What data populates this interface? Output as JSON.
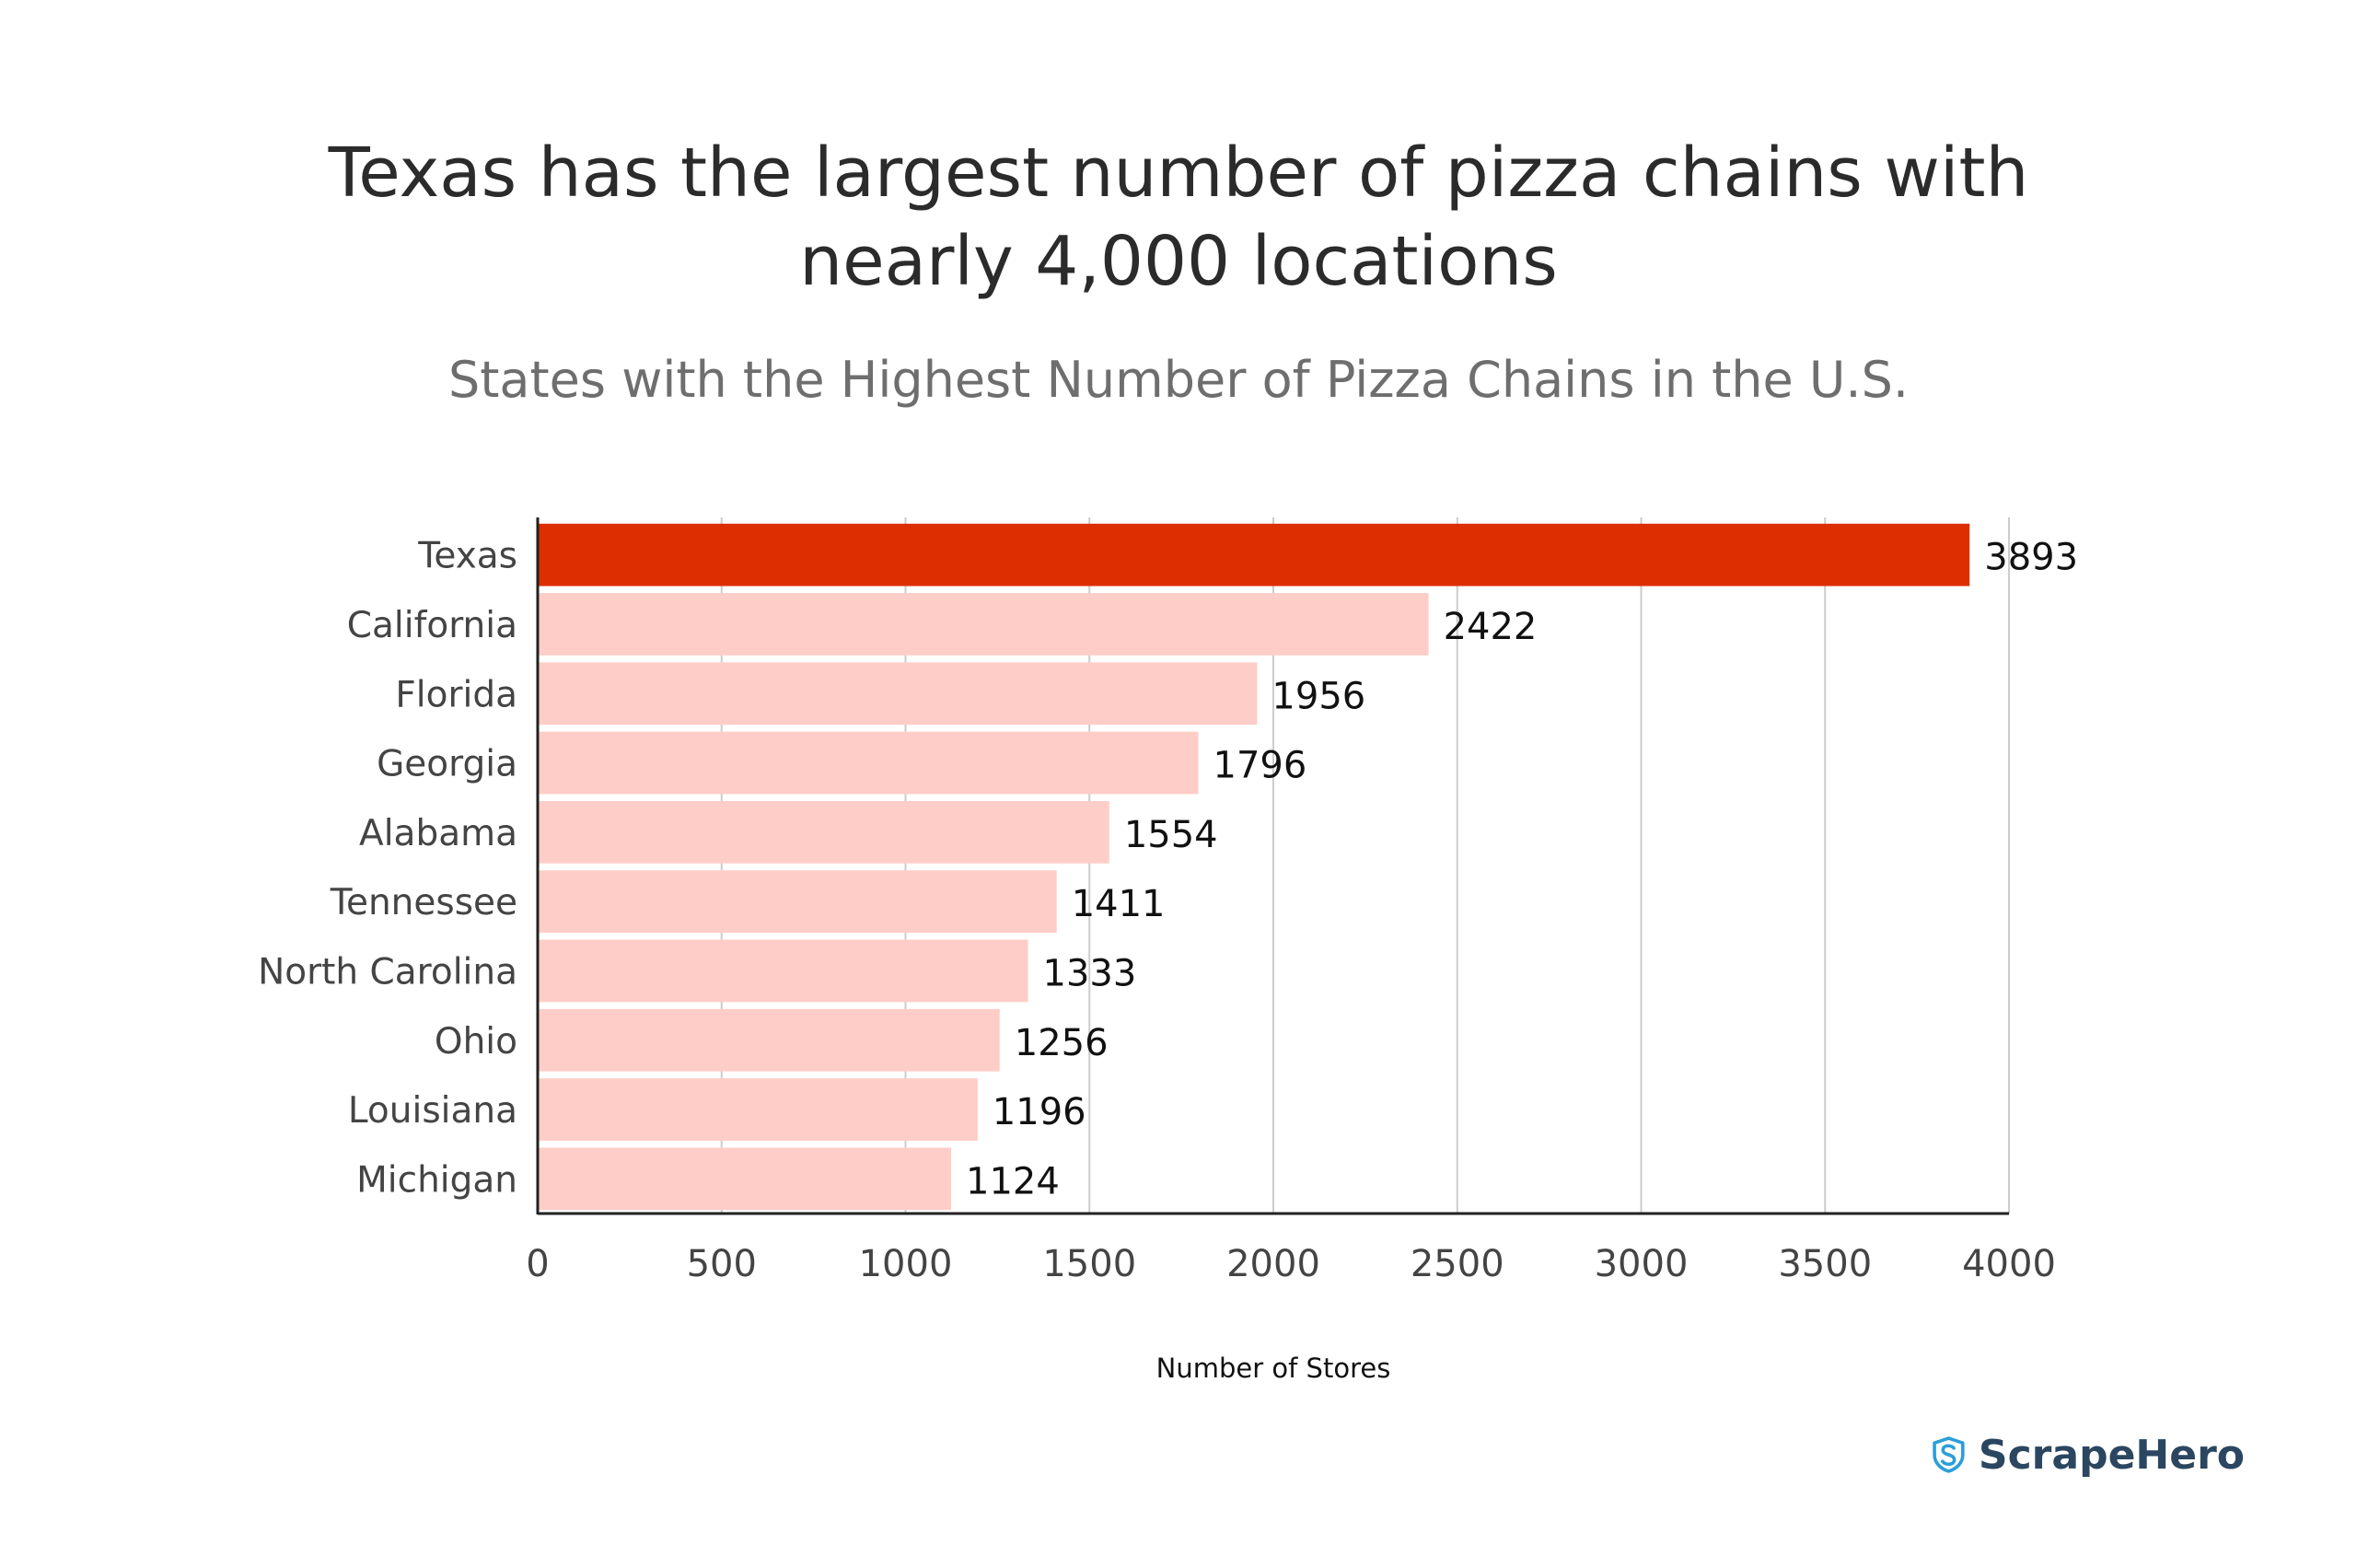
{
  "header": {
    "title_line1": "Texas has the largest number of pizza chains with",
    "title_line2": "nearly 4,000 locations",
    "subtitle": "States with the Highest Number of Pizza Chains in the U.S."
  },
  "brand": {
    "name": "ScrapeHero",
    "icon": "shield-s-icon",
    "color": "#2a9fd8",
    "text_color": "#2b4660"
  },
  "colors": {
    "highlight_bar": "#dc2e00",
    "bar": "#ffcdc7",
    "grid": "#cccccc",
    "axis": "#222222",
    "label": "#444444",
    "value": "#111111"
  },
  "chart_data": {
    "type": "bar",
    "orientation": "horizontal",
    "categories": [
      "Texas",
      "California",
      "Florida",
      "Georgia",
      "Alabama",
      "Tennessee",
      "North Carolina",
      "Ohio",
      "Louisiana",
      "Michigan"
    ],
    "values": [
      3893,
      2422,
      1956,
      1796,
      1554,
      1411,
      1333,
      1256,
      1196,
      1124
    ],
    "value_labels": [
      "3893",
      "2422",
      "1956",
      "1796",
      "1554",
      "1411",
      "1333",
      "1256",
      "1196",
      "1124"
    ],
    "highlight_index": 0,
    "xlabel": "Number of Stores",
    "ylabel": "",
    "xlim": [
      0,
      4000
    ],
    "xticks": [
      0,
      500,
      1000,
      1500,
      2000,
      2500,
      3000,
      3500,
      4000
    ],
    "xtick_labels": [
      "0",
      "500",
      "1000",
      "1500",
      "2000",
      "2500",
      "3000",
      "3500",
      "4000"
    ],
    "grid": "vertical",
    "legend": "none"
  }
}
